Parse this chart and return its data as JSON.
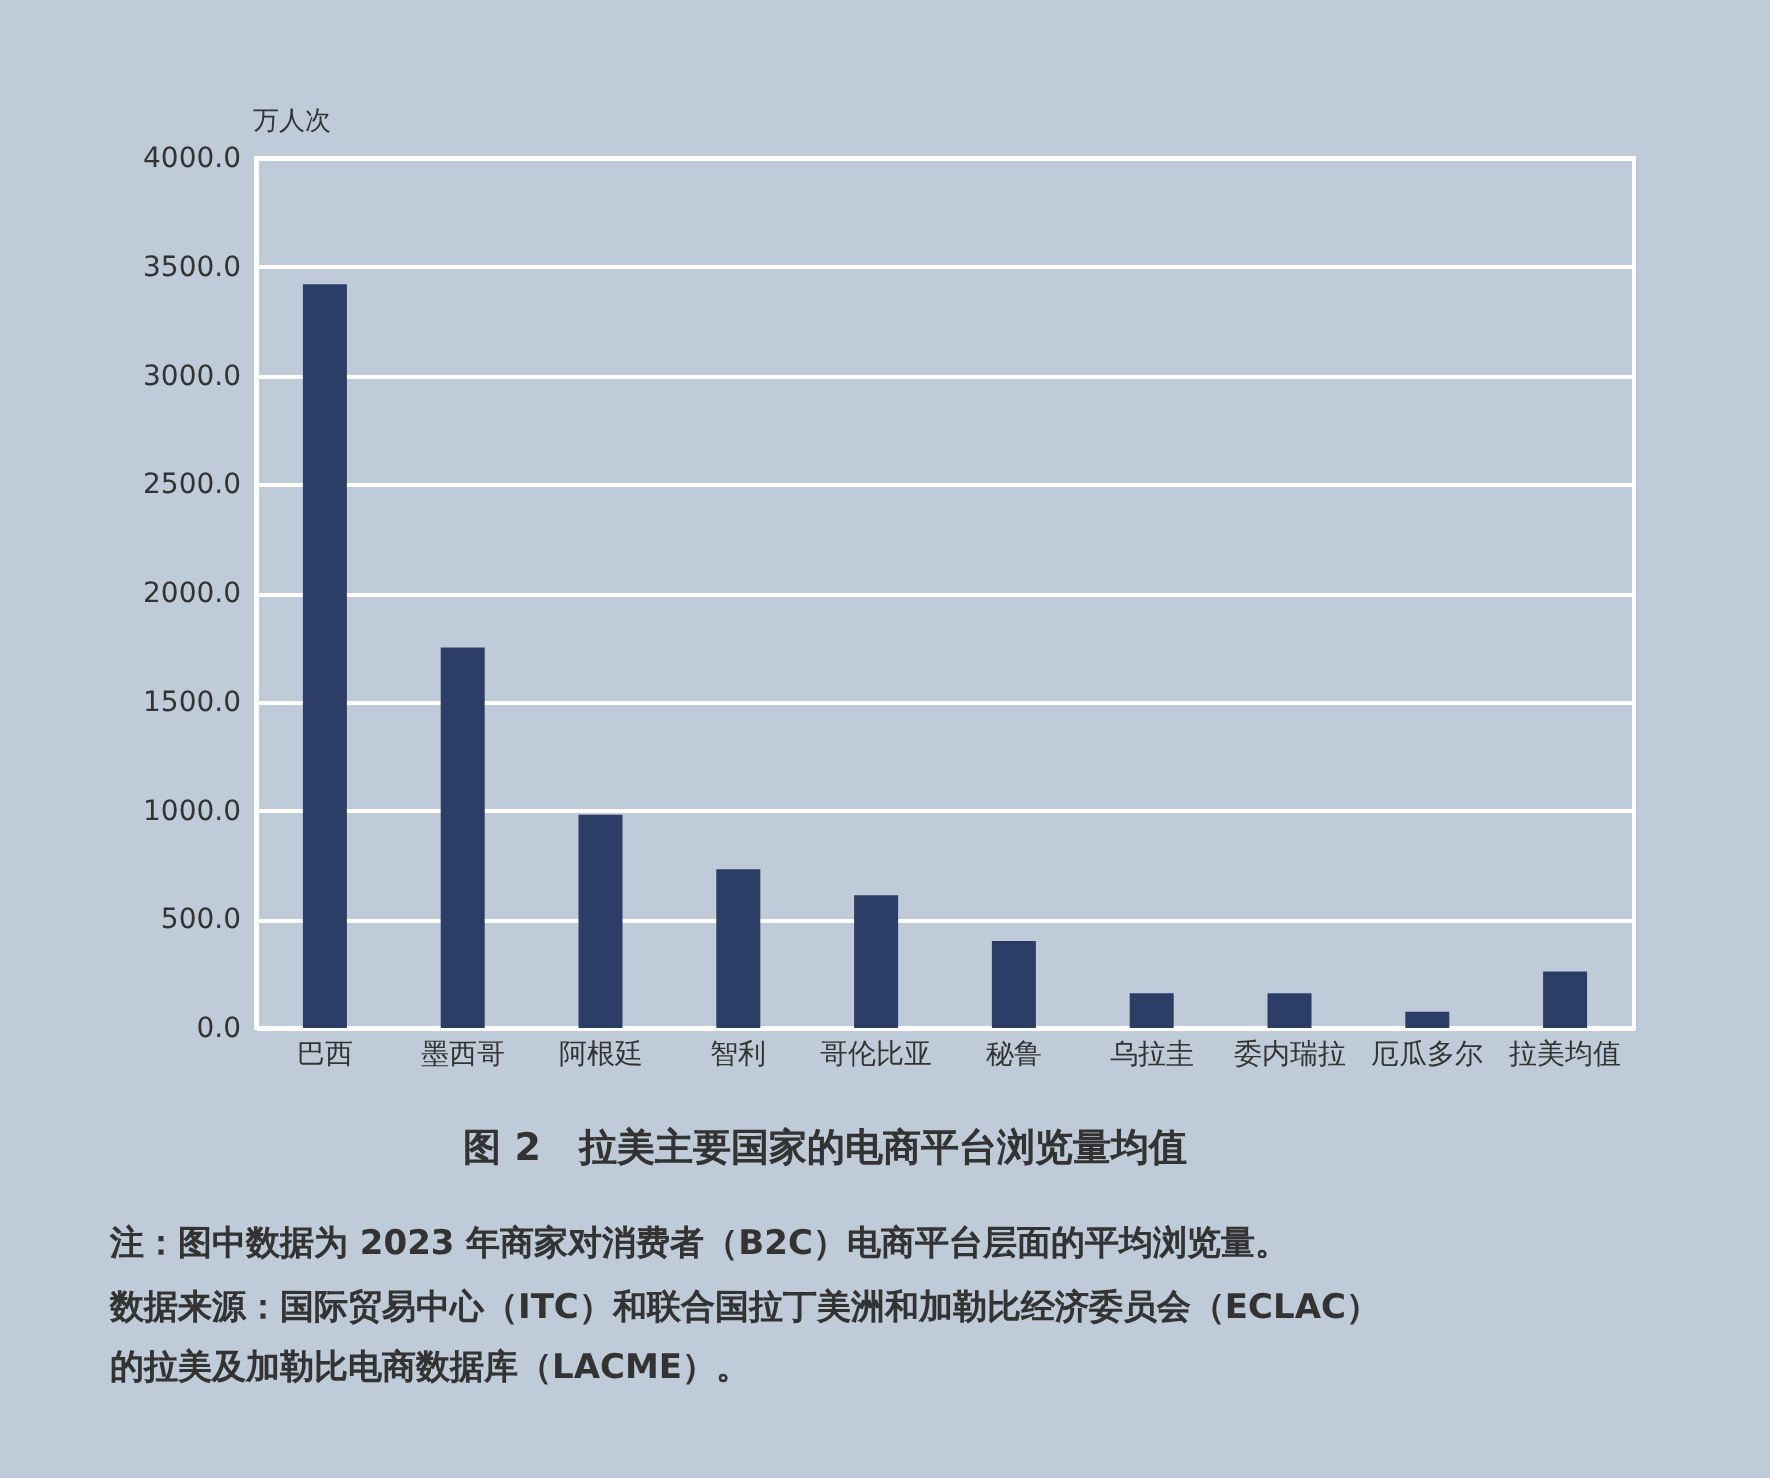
{
  "chart_data": {
    "type": "bar",
    "title": "图 2　拉美主要国家的电商平台浏览量均值",
    "ylabel": "万人次",
    "categories": [
      "巴西",
      "墨西哥",
      "阿根廷",
      "智利",
      "哥伦比亚",
      "秘鲁",
      "乌拉圭",
      "委内瑞拉",
      "厄瓜多尔",
      "拉美均值"
    ],
    "values": [
      3420,
      1750,
      980,
      730,
      610,
      400,
      160,
      160,
      75,
      260
    ],
    "color": "#2d3e66",
    "ylim": [
      0,
      4000
    ],
    "yticks": [
      {
        "value": 0,
        "label": "0.0"
      },
      {
        "value": 500,
        "label": "500.0"
      },
      {
        "value": 1000,
        "label": "1000.0"
      },
      {
        "value": 1500,
        "label": "1500.0"
      },
      {
        "value": 2000,
        "label": "2000.0"
      },
      {
        "value": 2500,
        "label": "2500.0"
      },
      {
        "value": 3000,
        "label": "3000.0"
      },
      {
        "value": 3500,
        "label": "3500.0"
      },
      {
        "value": 4000,
        "label": "4000.0"
      }
    ],
    "grid": "y",
    "annotations": [
      "注：图中数据为 2023 年商家对消费者（B2C）电商平台层面的平均浏览量。",
      "数据来源：国际贸易中心（ITC）和联合国拉丁美洲和加勒比经济委员会（ECLAC）的拉美及加勒比电商数据库（LACME）。"
    ]
  }
}
